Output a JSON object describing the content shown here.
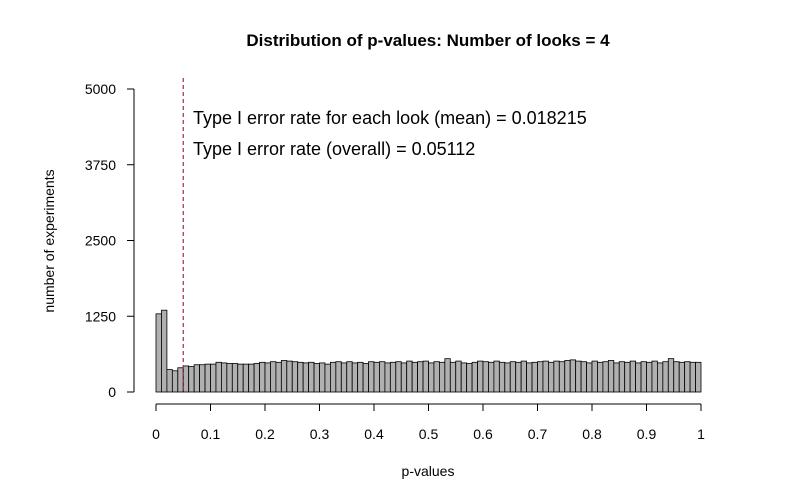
{
  "chart_data": {
    "type": "bar",
    "title": "Distribution of p-values: Number of looks =  4",
    "xlabel": "p-values",
    "ylabel": "number of experiments",
    "xlim": [
      0,
      1
    ],
    "ylim": [
      0,
      5000
    ],
    "x_ticks": [
      "0",
      "0.1",
      "0.2",
      "0.3",
      "0.4",
      "0.5",
      "0.6",
      "0.7",
      "0.8",
      "0.9",
      "1"
    ],
    "x_tick_values": [
      0,
      0.1,
      0.2,
      0.3,
      0.4,
      0.5,
      0.6,
      0.7,
      0.8,
      0.9,
      1
    ],
    "y_ticks": [
      "0",
      "1250",
      "2500",
      "3750",
      "5000"
    ],
    "y_tick_values": [
      0,
      1250,
      2500,
      3750,
      5000
    ],
    "bin_width": 0.01,
    "values": [
      1290,
      1350,
      370,
      350,
      400,
      430,
      420,
      450,
      450,
      460,
      460,
      490,
      480,
      470,
      470,
      460,
      460,
      460,
      470,
      490,
      480,
      500,
      490,
      520,
      510,
      500,
      490,
      480,
      490,
      470,
      480,
      460,
      490,
      500,
      480,
      500,
      480,
      490,
      470,
      500,
      490,
      500,
      480,
      490,
      500,
      480,
      510,
      490,
      500,
      510,
      480,
      500,
      490,
      550,
      490,
      510,
      480,
      470,
      490,
      510,
      500,
      490,
      510,
      490,
      480,
      500,
      490,
      510,
      480,
      490,
      500,
      510,
      490,
      510,
      500,
      520,
      530,
      510,
      500,
      480,
      510,
      490,
      500,
      520,
      480,
      500,
      490,
      510,
      480,
      500,
      490,
      510,
      480,
      500,
      550,
      500,
      490,
      500,
      490,
      490
    ],
    "cutoff_line": 0.05,
    "annotations": [
      "Type I error rate for each look (mean) =  0.018215",
      "Type I error rate (overall) =  0.05112"
    ],
    "grid": false,
    "colors": {
      "bar_fill": "#b0b0b0",
      "bar_stroke": "#000000",
      "cutoff_line": "#c2185b"
    }
  }
}
